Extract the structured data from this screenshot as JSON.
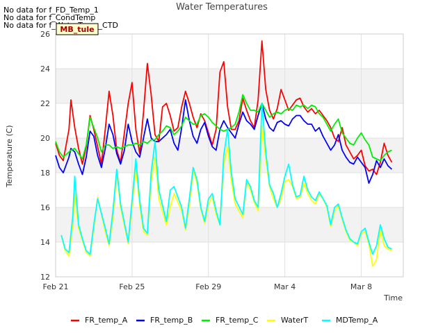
{
  "notes": [
    "No data for f_FD_Temp_1",
    "No data for f_CondTemp",
    "No data for f_WaterTemp_CTD"
  ],
  "badge": "MB_tule",
  "chart_data": {
    "type": "line",
    "title": "Water Temperatures",
    "xlabel": "Time",
    "ylabel": "Temperature (C)",
    "x_tick_labels": [
      "Feb 21",
      "Feb 25",
      "Feb 29",
      "Mar 4",
      "Mar 8"
    ],
    "x_tick_days": [
      0,
      4,
      8,
      12,
      16
    ],
    "xlim_days": [
      0,
      18.2
    ],
    "ylim": [
      12,
      26
    ],
    "y_ticks": [
      12,
      14,
      16,
      18,
      20,
      22,
      24,
      26
    ],
    "shaded_bands": [
      [
        14,
        16
      ],
      [
        18,
        20
      ],
      [
        22,
        24
      ]
    ],
    "grid": true,
    "legend_position": "bottom",
    "series": [
      {
        "name": "FR_temp_A",
        "color": "#ff0000",
        "x": [
          0.0,
          0.2,
          0.4,
          0.7,
          0.8,
          1.0,
          1.2,
          1.4,
          1.6,
          1.8,
          2.0,
          2.2,
          2.4,
          2.6,
          2.8,
          3.0,
          3.2,
          3.4,
          3.6,
          3.8,
          4.0,
          4.2,
          4.4,
          4.6,
          4.8,
          5.0,
          5.2,
          5.4,
          5.6,
          5.8,
          6.0,
          6.2,
          6.4,
          6.6,
          6.8,
          7.0,
          7.2,
          7.4,
          7.6,
          7.8,
          8.0,
          8.2,
          8.4,
          8.6,
          8.8,
          9.0,
          9.2,
          9.4,
          9.6,
          9.8,
          10.0,
          10.2,
          10.4,
          10.6,
          10.8,
          11.0,
          11.2,
          11.4,
          11.6,
          11.8,
          12.0,
          12.2,
          12.4,
          12.6,
          12.8,
          13.0,
          13.2,
          13.4,
          13.6,
          13.8,
          14.0,
          14.2,
          14.4,
          14.6,
          14.8,
          15.0,
          15.2,
          15.4,
          15.6,
          15.8,
          16.0,
          16.2,
          16.4,
          16.6,
          16.8,
          17.0,
          17.2,
          17.4,
          17.6
        ],
        "y": [
          19.7,
          19.0,
          18.7,
          20.5,
          22.2,
          20.6,
          19.4,
          18.5,
          19.5,
          21.3,
          20.5,
          19.5,
          18.5,
          20.5,
          22.7,
          21.3,
          19.3,
          18.6,
          20.3,
          22.0,
          23.2,
          20.5,
          19.1,
          21.5,
          24.3,
          22.5,
          20.2,
          19.8,
          21.8,
          22.0,
          21.3,
          20.4,
          20.6,
          21.8,
          22.7,
          22.0,
          21.2,
          20.6,
          21.4,
          21.0,
          20.3,
          19.6,
          20.5,
          23.8,
          24.4,
          21.8,
          20.5,
          20.5,
          21.0,
          22.3,
          21.6,
          21.0,
          20.6,
          22.2,
          25.6,
          22.8,
          21.6,
          21.1,
          21.7,
          22.8,
          22.2,
          21.6,
          21.9,
          22.2,
          22.3,
          21.8,
          21.5,
          21.7,
          21.4,
          21.6,
          21.3,
          21.0,
          20.6,
          20.0,
          19.8,
          20.6,
          19.6,
          19.2,
          18.8,
          19.0,
          19.3,
          18.4,
          18.1,
          18.2,
          17.9,
          18.6,
          19.7,
          19.0,
          18.6
        ]
      },
      {
        "name": "FR_temp_B",
        "color": "#0000ff",
        "x": [
          0.0,
          0.2,
          0.4,
          0.7,
          0.8,
          1.0,
          1.2,
          1.4,
          1.6,
          1.8,
          2.0,
          2.2,
          2.4,
          2.6,
          2.8,
          3.0,
          3.2,
          3.4,
          3.6,
          3.8,
          4.0,
          4.2,
          4.4,
          4.6,
          4.8,
          5.0,
          5.2,
          5.4,
          5.6,
          5.8,
          6.0,
          6.2,
          6.4,
          6.6,
          6.8,
          7.0,
          7.2,
          7.4,
          7.6,
          7.8,
          8.0,
          8.2,
          8.4,
          8.6,
          8.8,
          9.0,
          9.2,
          9.4,
          9.6,
          9.8,
          10.0,
          10.2,
          10.4,
          10.6,
          10.8,
          11.0,
          11.2,
          11.4,
          11.6,
          11.8,
          12.0,
          12.2,
          12.4,
          12.6,
          12.8,
          13.0,
          13.2,
          13.4,
          13.6,
          13.8,
          14.0,
          14.2,
          14.4,
          14.6,
          14.8,
          15.0,
          15.2,
          15.4,
          15.6,
          15.8,
          16.0,
          16.2,
          16.4,
          16.6,
          16.8,
          17.0,
          17.2,
          17.4,
          17.6
        ],
        "y": [
          19.0,
          18.3,
          18.0,
          18.9,
          19.4,
          19.2,
          18.5,
          17.9,
          18.9,
          20.4,
          20.1,
          19.0,
          18.3,
          19.4,
          20.8,
          20.2,
          19.1,
          18.5,
          19.3,
          20.8,
          19.8,
          19.2,
          18.9,
          20.0,
          21.1,
          20.0,
          19.8,
          19.8,
          20.0,
          20.2,
          20.5,
          19.7,
          19.3,
          20.6,
          22.2,
          21.0,
          20.1,
          19.7,
          20.5,
          20.9,
          20.1,
          19.5,
          19.3,
          20.5,
          21.0,
          20.6,
          20.3,
          20.0,
          20.8,
          21.5,
          21.0,
          20.8,
          20.5,
          21.3,
          22.0,
          21.1,
          20.6,
          20.4,
          20.9,
          21.0,
          20.8,
          20.7,
          21.1,
          21.3,
          21.3,
          21.0,
          20.8,
          20.8,
          20.4,
          20.6,
          20.1,
          19.7,
          19.3,
          19.6,
          20.2,
          19.3,
          18.9,
          18.6,
          18.5,
          18.9,
          18.6,
          18.3,
          17.4,
          17.9,
          18.7,
          18.3,
          18.8,
          18.4,
          18.2
        ]
      },
      {
        "name": "FR_temp_C",
        "color": "#00ee00",
        "x": [
          0.0,
          0.2,
          0.4,
          0.7,
          0.8,
          1.0,
          1.2,
          1.4,
          1.6,
          1.8,
          2.0,
          2.2,
          2.4,
          2.6,
          2.8,
          3.0,
          3.2,
          3.4,
          3.6,
          3.8,
          4.0,
          4.2,
          4.4,
          4.6,
          4.8,
          5.0,
          5.2,
          5.4,
          5.6,
          5.8,
          6.0,
          6.2,
          6.4,
          6.6,
          6.8,
          7.0,
          7.2,
          7.4,
          7.6,
          7.8,
          8.0,
          8.2,
          8.4,
          8.6,
          8.8,
          9.0,
          9.2,
          9.4,
          9.6,
          9.8,
          10.0,
          10.2,
          10.4,
          10.6,
          10.8,
          11.0,
          11.2,
          11.4,
          11.6,
          11.8,
          12.0,
          12.2,
          12.4,
          12.6,
          12.8,
          13.0,
          13.2,
          13.4,
          13.6,
          13.8,
          14.0,
          14.2,
          14.4,
          14.6,
          14.8,
          15.0,
          15.2,
          15.4,
          15.6,
          15.8,
          16.0,
          16.2,
          16.4,
          16.6,
          16.8,
          17.0,
          17.2,
          17.4,
          17.6
        ],
        "y": [
          19.8,
          19.2,
          18.9,
          19.2,
          19.3,
          19.4,
          19.1,
          18.8,
          19.6,
          21.2,
          20.6,
          20.0,
          19.2,
          19.6,
          19.6,
          19.4,
          19.5,
          19.4,
          19.5,
          19.6,
          19.6,
          19.7,
          19.6,
          19.8,
          19.7,
          19.9,
          19.9,
          20.2,
          20.4,
          20.7,
          20.6,
          20.2,
          20.4,
          20.7,
          21.2,
          21.0,
          20.8,
          20.8,
          21.3,
          21.4,
          21.2,
          20.9,
          20.7,
          20.5,
          20.4,
          20.5,
          20.6,
          20.8,
          21.5,
          22.5,
          22.0,
          21.6,
          21.6,
          21.5,
          22.0,
          21.6,
          21.2,
          21.4,
          21.5,
          21.4,
          21.6,
          21.7,
          21.6,
          21.9,
          21.8,
          21.9,
          21.7,
          21.9,
          21.8,
          21.4,
          21.2,
          20.8,
          20.4,
          20.8,
          21.1,
          20.3,
          20.0,
          19.7,
          19.6,
          20.0,
          20.3,
          19.9,
          19.6,
          18.9,
          18.8,
          18.7,
          19.0,
          19.2,
          19.3
        ]
      },
      {
        "name": "WaterT",
        "color": "#ffff00",
        "x": [
          0.3,
          0.5,
          0.7,
          0.9,
          1.0,
          1.2,
          1.4,
          1.6,
          1.8,
          2.0,
          2.2,
          2.6,
          2.8,
          3.0,
          3.2,
          3.4,
          3.8,
          4.2,
          4.4,
          4.6,
          4.8,
          5.0,
          5.2,
          5.4,
          5.8,
          6.0,
          6.2,
          6.6,
          6.8,
          7.0,
          7.2,
          7.4,
          7.6,
          7.8,
          8.0,
          8.2,
          8.4,
          8.6,
          8.8,
          9.0,
          9.2,
          9.4,
          9.8,
          10.0,
          10.2,
          10.4,
          10.6,
          10.8,
          11.0,
          11.2,
          11.4,
          11.6,
          11.8,
          12.0,
          12.2,
          12.4,
          12.6,
          12.8,
          13.0,
          13.2,
          13.4,
          13.6,
          13.8,
          14.0,
          14.2,
          14.4,
          14.6,
          14.8,
          15.0,
          15.2,
          15.4,
          15.6,
          15.8,
          16.0,
          16.2,
          16.4,
          16.6,
          16.8,
          17.0,
          17.2,
          17.4,
          17.6
        ],
        "y": [
          14.4,
          13.5,
          13.2,
          15.0,
          16.8,
          14.8,
          14.1,
          13.4,
          13.2,
          14.8,
          16.6,
          14.6,
          13.8,
          15.4,
          18.0,
          16.0,
          13.9,
          18.3,
          16.1,
          14.6,
          14.4,
          17.5,
          18.9,
          16.5,
          15.0,
          16.0,
          16.8,
          15.8,
          14.7,
          16.2,
          18.1,
          17.4,
          15.9,
          15.1,
          16.2,
          16.6,
          15.6,
          15.0,
          18.5,
          19.5,
          17.5,
          16.2,
          15.4,
          17.5,
          17.0,
          16.3,
          15.8,
          20.7,
          18.8,
          17.2,
          16.5,
          16.0,
          16.5,
          17.5,
          17.6,
          17.2,
          16.5,
          16.6,
          17.4,
          16.8,
          16.4,
          16.2,
          16.8,
          16.5,
          16.0,
          14.9,
          15.8,
          16.1,
          15.3,
          14.6,
          14.1,
          14.0,
          13.8,
          14.5,
          14.6,
          13.9,
          12.6,
          13.0,
          14.7,
          13.8,
          13.6,
          13.5
        ]
      },
      {
        "name": "MDTemp_A",
        "color": "#00ffff",
        "x": [
          0.3,
          0.5,
          0.7,
          0.9,
          1.0,
          1.2,
          1.4,
          1.6,
          1.8,
          2.0,
          2.2,
          2.6,
          2.8,
          3.0,
          3.2,
          3.4,
          3.8,
          4.2,
          4.4,
          4.6,
          4.8,
          5.0,
          5.2,
          5.4,
          5.8,
          6.0,
          6.2,
          6.6,
          6.8,
          7.0,
          7.2,
          7.4,
          7.6,
          7.8,
          8.0,
          8.2,
          8.4,
          8.6,
          8.8,
          9.0,
          9.2,
          9.4,
          9.8,
          10.0,
          10.2,
          10.4,
          10.6,
          10.8,
          11.0,
          11.2,
          11.4,
          11.6,
          11.8,
          12.0,
          12.2,
          12.4,
          12.6,
          12.8,
          13.0,
          13.2,
          13.4,
          13.6,
          13.8,
          14.0,
          14.2,
          14.4,
          14.6,
          14.8,
          15.0,
          15.2,
          15.4,
          15.6,
          15.8,
          16.0,
          16.2,
          16.4,
          16.6,
          16.8,
          17.0,
          17.2,
          17.4,
          17.6
        ],
        "y": [
          14.4,
          13.6,
          13.4,
          15.5,
          17.8,
          15.0,
          14.2,
          13.5,
          13.3,
          15.0,
          16.5,
          14.8,
          13.9,
          15.8,
          18.2,
          16.2,
          14.0,
          18.8,
          16.4,
          14.8,
          14.5,
          18.0,
          19.8,
          17.0,
          15.2,
          17.0,
          17.2,
          16.0,
          14.8,
          16.5,
          18.3,
          17.6,
          16.0,
          15.2,
          16.5,
          16.8,
          15.8,
          15.0,
          19.0,
          20.5,
          18.0,
          16.5,
          15.6,
          17.6,
          17.2,
          16.4,
          16.0,
          22.0,
          19.2,
          17.3,
          16.8,
          16.0,
          16.8,
          17.8,
          18.5,
          17.3,
          16.6,
          16.7,
          17.8,
          17.0,
          16.6,
          16.4,
          16.9,
          16.5,
          16.1,
          15.0,
          16.0,
          16.2,
          15.4,
          14.7,
          14.2,
          14.0,
          13.9,
          14.6,
          14.8,
          14.0,
          13.3,
          13.8,
          15.0,
          14.2,
          13.7,
          13.6
        ]
      }
    ]
  }
}
